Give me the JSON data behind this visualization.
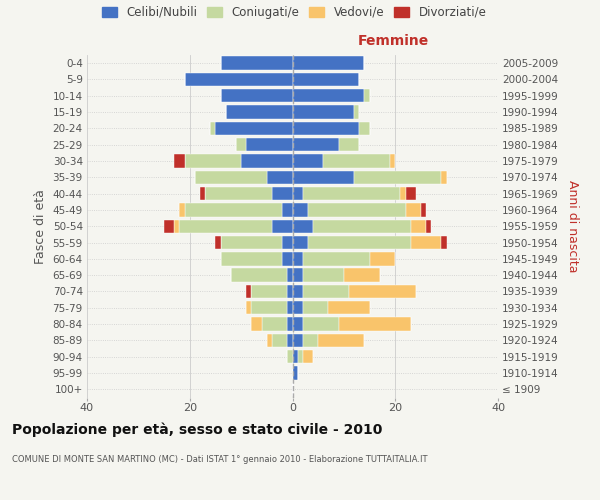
{
  "age_groups": [
    "100+",
    "95-99",
    "90-94",
    "85-89",
    "80-84",
    "75-79",
    "70-74",
    "65-69",
    "60-64",
    "55-59",
    "50-54",
    "45-49",
    "40-44",
    "35-39",
    "30-34",
    "25-29",
    "20-24",
    "15-19",
    "10-14",
    "5-9",
    "0-4"
  ],
  "birth_years": [
    "≤ 1909",
    "1910-1914",
    "1915-1919",
    "1920-1924",
    "1925-1929",
    "1930-1934",
    "1935-1939",
    "1940-1944",
    "1945-1949",
    "1950-1954",
    "1955-1959",
    "1960-1964",
    "1965-1969",
    "1970-1974",
    "1975-1979",
    "1980-1984",
    "1985-1989",
    "1990-1994",
    "1995-1999",
    "2000-2004",
    "2005-2009"
  ],
  "male": {
    "celibi": [
      0,
      0,
      0,
      1,
      1,
      1,
      1,
      1,
      2,
      2,
      4,
      2,
      4,
      5,
      10,
      9,
      15,
      13,
      14,
      21,
      14
    ],
    "coniugati": [
      0,
      0,
      1,
      3,
      5,
      7,
      7,
      11,
      12,
      12,
      18,
      19,
      13,
      14,
      11,
      2,
      1,
      0,
      0,
      0,
      0
    ],
    "vedovi": [
      0,
      0,
      0,
      1,
      2,
      1,
      0,
      0,
      0,
      0,
      1,
      1,
      0,
      0,
      0,
      0,
      0,
      0,
      0,
      0,
      0
    ],
    "divorziati": [
      0,
      0,
      0,
      0,
      0,
      0,
      1,
      0,
      0,
      1,
      2,
      0,
      1,
      0,
      2,
      0,
      0,
      0,
      0,
      0,
      0
    ]
  },
  "female": {
    "nubili": [
      0,
      1,
      1,
      2,
      2,
      2,
      2,
      2,
      2,
      3,
      4,
      3,
      2,
      12,
      6,
      9,
      13,
      12,
      14,
      13,
      14
    ],
    "coniugate": [
      0,
      0,
      1,
      3,
      7,
      5,
      9,
      8,
      13,
      20,
      19,
      19,
      19,
      17,
      13,
      4,
      2,
      1,
      1,
      0,
      0
    ],
    "vedove": [
      0,
      0,
      2,
      9,
      14,
      8,
      13,
      7,
      5,
      6,
      3,
      3,
      1,
      1,
      1,
      0,
      0,
      0,
      0,
      0,
      0
    ],
    "divorziate": [
      0,
      0,
      0,
      0,
      0,
      0,
      0,
      0,
      0,
      1,
      1,
      1,
      2,
      0,
      0,
      0,
      0,
      0,
      0,
      0,
      0
    ]
  },
  "colors": {
    "celibi": "#4472c4",
    "coniugati": "#c5d9a0",
    "vedovi": "#f9c46b",
    "divorziati": "#c0302a"
  },
  "xlim": 40,
  "title": "Popolazione per età, sesso e stato civile - 2010",
  "subtitle": "COMUNE DI MONTE SAN MARTINO (MC) - Dati ISTAT 1° gennaio 2010 - Elaborazione TUTTAITALIA.IT",
  "ylabel_left": "Fasce di età",
  "ylabel_right": "Anni di nascita",
  "legend_labels": [
    "Celibi/Nubili",
    "Coniugati/e",
    "Vedovi/e",
    "Divorziati/e"
  ],
  "femmine_label": "Femmine",
  "background_color": "#f5f5f0",
  "plot_background": "#f5f5f0"
}
